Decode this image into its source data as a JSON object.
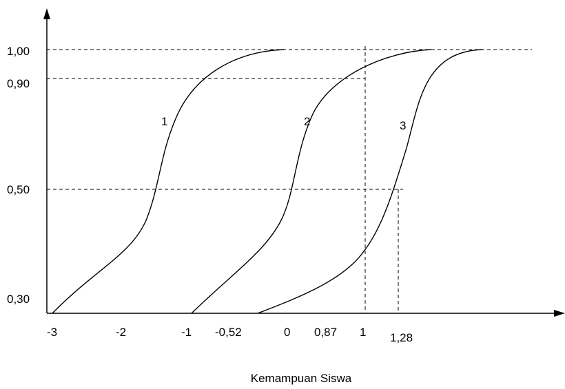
{
  "chart_data": {
    "type": "line",
    "title": "",
    "xlabel": "Kemampuan Siswa",
    "ylabel": "",
    "x_ticks": [
      "-3",
      "-2",
      "-1",
      "-0,52",
      "0",
      "0,87",
      "1",
      "1,28"
    ],
    "y_ticks": [
      "0,30",
      "0,50",
      "0,90",
      "1,00"
    ],
    "series": [
      {
        "name": "1",
        "points": [
          [
            -3.0,
            0.3
          ],
          [
            -2.2,
            0.4
          ],
          [
            -1.7,
            0.5
          ],
          [
            -1.2,
            0.8
          ],
          [
            -0.7,
            1.0
          ]
        ]
      },
      {
        "name": "2",
        "points": [
          [
            -1.0,
            0.3
          ],
          [
            -0.1,
            0.4
          ],
          [
            0.32,
            0.5
          ],
          [
            0.7,
            0.8
          ],
          [
            1.35,
            1.0
          ]
        ]
      },
      {
        "name": "3",
        "points": [
          [
            0.0,
            0.3
          ],
          [
            0.9,
            0.4
          ],
          [
            1.28,
            0.5
          ],
          [
            1.55,
            0.8
          ],
          [
            2.0,
            1.0
          ]
        ]
      }
    ],
    "reference_lines": [
      {
        "axis": "y",
        "value": 1.0,
        "label": "1,00"
      },
      {
        "axis": "y",
        "value": 0.9,
        "label": "0,90"
      },
      {
        "axis": "y",
        "value": 0.5,
        "label": "0,50"
      },
      {
        "axis": "x",
        "value": 1.0,
        "label": "1"
      },
      {
        "axis": "x",
        "value": 1.28,
        "label": "1,28"
      }
    ],
    "grid": false,
    "legend": "none"
  }
}
